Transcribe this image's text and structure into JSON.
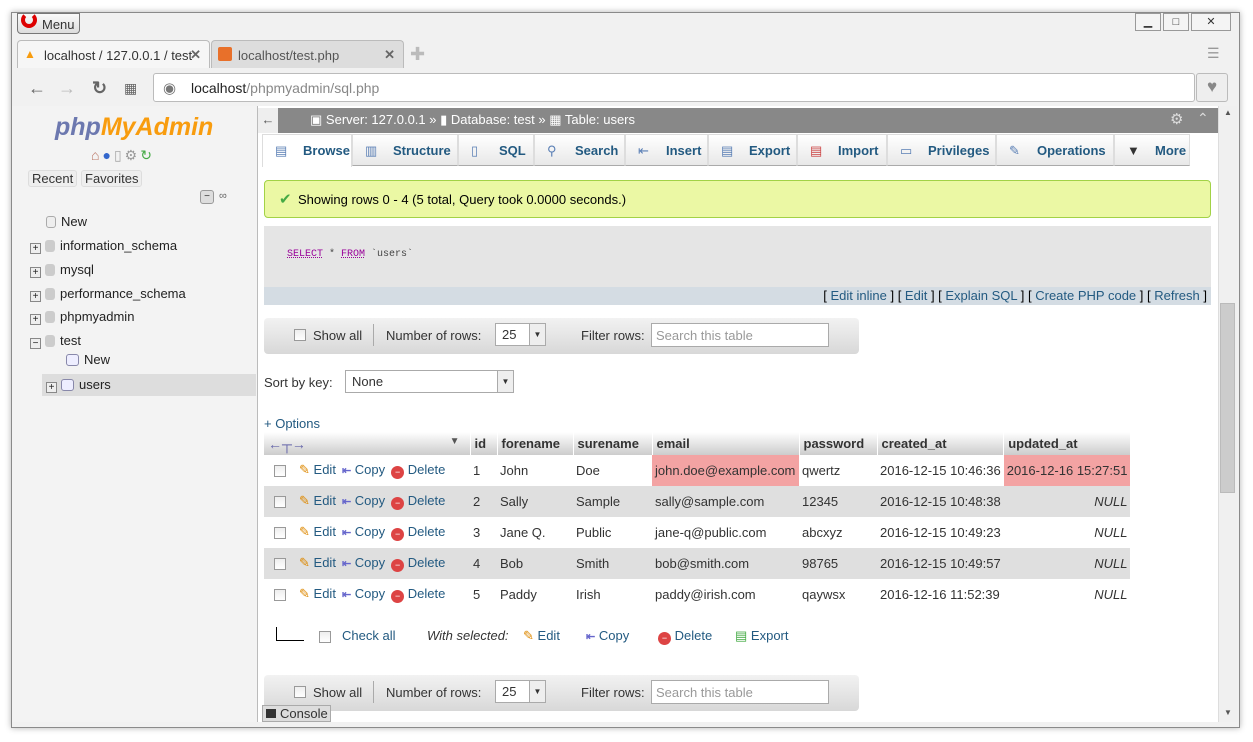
{
  "browser": {
    "menu": "Menu",
    "tabs": [
      {
        "title": "localhost / 127.0.0.1 / test"
      },
      {
        "title": "localhost/test.php"
      }
    ],
    "url_host": "localhost",
    "url_path": "/phpmyadmin/sql.php"
  },
  "sidebar": {
    "logo_a": "php",
    "logo_b": "MyAdmin",
    "recent": "Recent",
    "favorites": "Favorites",
    "tree": [
      {
        "label": "New"
      },
      {
        "label": "information_schema"
      },
      {
        "label": "mysql"
      },
      {
        "label": "performance_schema"
      },
      {
        "label": "phpmyadmin"
      },
      {
        "label": "test"
      },
      {
        "label": "New"
      },
      {
        "label": "users"
      }
    ]
  },
  "breadcrumb": {
    "server": "Server: 127.0.0.1",
    "database": "Database: test",
    "table": "Table: users",
    "sep": "»"
  },
  "tabs": [
    "Browse",
    "Structure",
    "SQL",
    "Search",
    "Insert",
    "Export",
    "Import",
    "Privileges",
    "Operations",
    "More"
  ],
  "success": "Showing rows 0 - 4 (5 total, Query took 0.0000 seconds.)",
  "sql": {
    "kw1": "SELECT",
    "rest1": " * ",
    "kw2": "FROM",
    "rest2": " `users`"
  },
  "sql_links": [
    "Edit inline",
    "Edit",
    "Explain SQL",
    "Create PHP code",
    "Refresh"
  ],
  "nav": {
    "show_all": "Show all",
    "rows_label": "Number of rows:",
    "rows_value": "25",
    "filter_label": "Filter rows:",
    "filter_placeholder": "Search this table"
  },
  "sort": {
    "label": "Sort by key:",
    "value": "None"
  },
  "options": "+ Options",
  "columns": [
    "id",
    "forename",
    "surename",
    "email",
    "password",
    "created_at",
    "updated_at"
  ],
  "actions": {
    "edit": "Edit",
    "copy": "Copy",
    "delete": "Delete"
  },
  "rows": [
    [
      "1",
      "John",
      "Doe",
      "john.doe@example.com",
      "qwertz",
      "2016-12-15 10:46:36",
      "2016-12-16 15:27:51"
    ],
    [
      "2",
      "Sally",
      "Sample",
      "sally@sample.com",
      "12345",
      "2016-12-15 10:48:38",
      "NULL"
    ],
    [
      "3",
      "Jane Q.",
      "Public",
      "jane-q@public.com",
      "abcxyz",
      "2016-12-15 10:49:23",
      "NULL"
    ],
    [
      "4",
      "Bob",
      "Smith",
      "bob@smith.com",
      "98765",
      "2016-12-15 10:49:57",
      "NULL"
    ],
    [
      "5",
      "Paddy",
      "Irish",
      "paddy@irish.com",
      "qaywsx",
      "2016-12-16 11:52:39",
      "NULL"
    ]
  ],
  "footer": {
    "check_all": "Check all",
    "with_selected": "With selected:",
    "edit": "Edit",
    "copy": "Copy",
    "delete": "Delete",
    "export": "Export"
  },
  "console": "Console",
  "colors": {
    "highlight": "#f3a3a3",
    "success_bg": "#ebf8a4",
    "link": "#235a81"
  }
}
